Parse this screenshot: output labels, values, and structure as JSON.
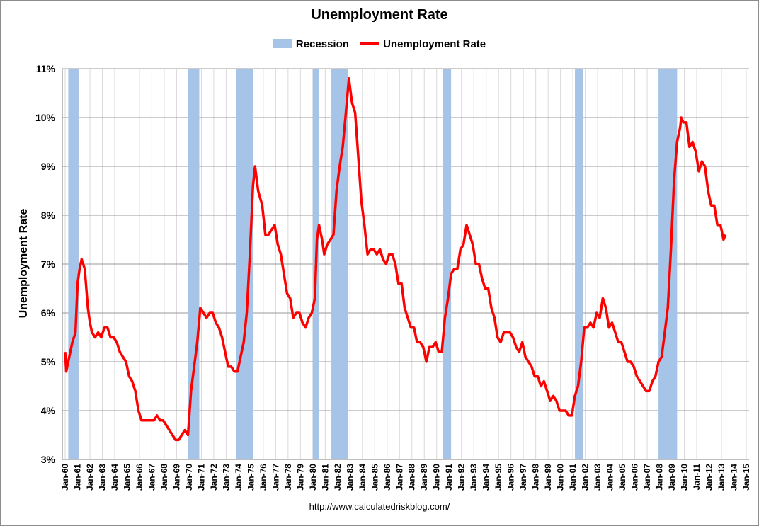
{
  "chart_data": {
    "type": "line",
    "title": "Unemployment Rate",
    "ylabel": "Unemployment Rate",
    "xlabel": "",
    "ylim": [
      3,
      11
    ],
    "xlim": [
      "Jan-60",
      "Jan-15"
    ],
    "legend": {
      "placement": "top-center",
      "entries": [
        "Recession",
        "Unemployment Rate"
      ]
    },
    "grid": true,
    "yticks": [
      "3%",
      "4%",
      "5%",
      "6%",
      "7%",
      "8%",
      "9%",
      "10%",
      "11%"
    ],
    "xticks": [
      "Jan-60",
      "Jan-61",
      "Jan-62",
      "Jan-63",
      "Jan-64",
      "Jan-65",
      "Jan-66",
      "Jan-67",
      "Jan-68",
      "Jan-69",
      "Jan-70",
      "Jan-71",
      "Jan-72",
      "Jan-73",
      "Jan-74",
      "Jan-75",
      "Jan-76",
      "Jan-77",
      "Jan-78",
      "Jan-79",
      "Jan-80",
      "Jan-81",
      "Jan-82",
      "Jan-83",
      "Jan-84",
      "Jan-85",
      "Jan-86",
      "Jan-87",
      "Jan-88",
      "Jan-89",
      "Jan-90",
      "Jan-91",
      "Jan-92",
      "Jan-93",
      "Jan-94",
      "Jan-95",
      "Jan-96",
      "Jan-97",
      "Jan-98",
      "Jan-99",
      "Jan-00",
      "Jan-01",
      "Jan-02",
      "Jan-03",
      "Jan-04",
      "Jan-05",
      "Jan-06",
      "Jan-07",
      "Jan-08",
      "Jan-09",
      "Jan-10",
      "Jan-11",
      "Jan-12",
      "Jan-13",
      "Jan-14",
      "Jan-15"
    ],
    "recessions": [
      {
        "start": "1960-04",
        "end": "1961-02"
      },
      {
        "start": "1969-12",
        "end": "1970-11"
      },
      {
        "start": "1973-11",
        "end": "1975-03"
      },
      {
        "start": "1980-01",
        "end": "1980-07"
      },
      {
        "start": "1981-07",
        "end": "1982-11"
      },
      {
        "start": "1990-07",
        "end": "1991-03"
      },
      {
        "start": "2001-03",
        "end": "2001-11"
      },
      {
        "start": "2007-12",
        "end": "2009-06"
      }
    ],
    "series": [
      {
        "name": "Unemployment Rate",
        "color": "#ff0000",
        "points": [
          [
            "1960-01",
            5.2
          ],
          [
            "1960-02",
            4.8
          ],
          [
            "1960-05",
            5.1
          ],
          [
            "1960-08",
            5.4
          ],
          [
            "1960-11",
            5.6
          ],
          [
            "1961-01",
            6.6
          ],
          [
            "1961-03",
            6.9
          ],
          [
            "1961-05",
            7.1
          ],
          [
            "1961-08",
            6.9
          ],
          [
            "1961-11",
            6.1
          ],
          [
            "1962-01",
            5.8
          ],
          [
            "1962-03",
            5.6
          ],
          [
            "1962-06",
            5.5
          ],
          [
            "1962-09",
            5.6
          ],
          [
            "1962-12",
            5.5
          ],
          [
            "1963-03",
            5.7
          ],
          [
            "1963-06",
            5.7
          ],
          [
            "1963-09",
            5.5
          ],
          [
            "1963-12",
            5.5
          ],
          [
            "1964-03",
            5.4
          ],
          [
            "1964-06",
            5.2
          ],
          [
            "1964-09",
            5.1
          ],
          [
            "1964-12",
            5.0
          ],
          [
            "1965-03",
            4.7
          ],
          [
            "1965-06",
            4.6
          ],
          [
            "1965-09",
            4.4
          ],
          [
            "1965-12",
            4.0
          ],
          [
            "1966-03",
            3.8
          ],
          [
            "1966-06",
            3.8
          ],
          [
            "1966-09",
            3.8
          ],
          [
            "1966-12",
            3.8
          ],
          [
            "1967-03",
            3.8
          ],
          [
            "1967-06",
            3.9
          ],
          [
            "1967-09",
            3.8
          ],
          [
            "1967-12",
            3.8
          ],
          [
            "1968-03",
            3.7
          ],
          [
            "1968-06",
            3.6
          ],
          [
            "1968-09",
            3.5
          ],
          [
            "1968-12",
            3.4
          ],
          [
            "1969-03",
            3.4
          ],
          [
            "1969-06",
            3.5
          ],
          [
            "1969-09",
            3.6
          ],
          [
            "1969-12",
            3.5
          ],
          [
            "1970-03",
            4.4
          ],
          [
            "1970-06",
            4.9
          ],
          [
            "1970-09",
            5.4
          ],
          [
            "1970-12",
            6.1
          ],
          [
            "1971-03",
            6.0
          ],
          [
            "1971-06",
            5.9
          ],
          [
            "1971-09",
            6.0
          ],
          [
            "1971-12",
            6.0
          ],
          [
            "1972-03",
            5.8
          ],
          [
            "1972-06",
            5.7
          ],
          [
            "1972-09",
            5.5
          ],
          [
            "1972-12",
            5.2
          ],
          [
            "1973-03",
            4.9
          ],
          [
            "1973-06",
            4.9
          ],
          [
            "1973-09",
            4.8
          ],
          [
            "1973-12",
            4.8
          ],
          [
            "1974-03",
            5.1
          ],
          [
            "1974-06",
            5.4
          ],
          [
            "1974-09",
            6.0
          ],
          [
            "1974-12",
            7.2
          ],
          [
            "1975-03",
            8.6
          ],
          [
            "1975-05",
            9.0
          ],
          [
            "1975-08",
            8.5
          ],
          [
            "1975-12",
            8.2
          ],
          [
            "1976-03",
            7.6
          ],
          [
            "1976-06",
            7.6
          ],
          [
            "1976-09",
            7.7
          ],
          [
            "1976-12",
            7.8
          ],
          [
            "1977-03",
            7.4
          ],
          [
            "1977-06",
            7.2
          ],
          [
            "1977-09",
            6.8
          ],
          [
            "1977-12",
            6.4
          ],
          [
            "1978-03",
            6.3
          ],
          [
            "1978-06",
            5.9
          ],
          [
            "1978-09",
            6.0
          ],
          [
            "1978-12",
            6.0
          ],
          [
            "1979-03",
            5.8
          ],
          [
            "1979-06",
            5.7
          ],
          [
            "1979-09",
            5.9
          ],
          [
            "1979-12",
            6.0
          ],
          [
            "1980-03",
            6.3
          ],
          [
            "1980-05",
            7.5
          ],
          [
            "1980-07",
            7.8
          ],
          [
            "1980-10",
            7.5
          ],
          [
            "1980-12",
            7.2
          ],
          [
            "1981-03",
            7.4
          ],
          [
            "1981-06",
            7.5
          ],
          [
            "1981-09",
            7.6
          ],
          [
            "1981-12",
            8.5
          ],
          [
            "1982-03",
            9.0
          ],
          [
            "1982-06",
            9.4
          ],
          [
            "1982-09",
            10.1
          ],
          [
            "1982-12",
            10.8
          ],
          [
            "1983-03",
            10.3
          ],
          [
            "1983-06",
            10.1
          ],
          [
            "1983-09",
            9.2
          ],
          [
            "1983-12",
            8.3
          ],
          [
            "1984-03",
            7.8
          ],
          [
            "1984-06",
            7.2
          ],
          [
            "1984-09",
            7.3
          ],
          [
            "1984-12",
            7.3
          ],
          [
            "1985-03",
            7.2
          ],
          [
            "1985-06",
            7.3
          ],
          [
            "1985-09",
            7.1
          ],
          [
            "1985-12",
            7.0
          ],
          [
            "1986-03",
            7.2
          ],
          [
            "1986-06",
            7.2
          ],
          [
            "1986-09",
            7.0
          ],
          [
            "1986-12",
            6.6
          ],
          [
            "1987-03",
            6.6
          ],
          [
            "1987-06",
            6.1
          ],
          [
            "1987-09",
            5.9
          ],
          [
            "1987-12",
            5.7
          ],
          [
            "1988-03",
            5.7
          ],
          [
            "1988-06",
            5.4
          ],
          [
            "1988-09",
            5.4
          ],
          [
            "1988-12",
            5.3
          ],
          [
            "1989-03",
            5.0
          ],
          [
            "1989-06",
            5.3
          ],
          [
            "1989-09",
            5.3
          ],
          [
            "1989-12",
            5.4
          ],
          [
            "1990-03",
            5.2
          ],
          [
            "1990-06",
            5.2
          ],
          [
            "1990-09",
            5.9
          ],
          [
            "1990-12",
            6.3
          ],
          [
            "1991-03",
            6.8
          ],
          [
            "1991-06",
            6.9
          ],
          [
            "1991-09",
            6.9
          ],
          [
            "1991-12",
            7.3
          ],
          [
            "1992-03",
            7.4
          ],
          [
            "1992-06",
            7.8
          ],
          [
            "1992-09",
            7.6
          ],
          [
            "1992-12",
            7.4
          ],
          [
            "1993-03",
            7.0
          ],
          [
            "1993-06",
            7.0
          ],
          [
            "1993-09",
            6.7
          ],
          [
            "1993-12",
            6.5
          ],
          [
            "1994-03",
            6.5
          ],
          [
            "1994-06",
            6.1
          ],
          [
            "1994-09",
            5.9
          ],
          [
            "1994-12",
            5.5
          ],
          [
            "1995-03",
            5.4
          ],
          [
            "1995-06",
            5.6
          ],
          [
            "1995-09",
            5.6
          ],
          [
            "1995-12",
            5.6
          ],
          [
            "1996-03",
            5.5
          ],
          [
            "1996-06",
            5.3
          ],
          [
            "1996-09",
            5.2
          ],
          [
            "1996-12",
            5.4
          ],
          [
            "1997-03",
            5.1
          ],
          [
            "1997-06",
            5.0
          ],
          [
            "1997-09",
            4.9
          ],
          [
            "1997-12",
            4.7
          ],
          [
            "1998-03",
            4.7
          ],
          [
            "1998-06",
            4.5
          ],
          [
            "1998-09",
            4.6
          ],
          [
            "1998-12",
            4.4
          ],
          [
            "1999-03",
            4.2
          ],
          [
            "1999-06",
            4.3
          ],
          [
            "1999-09",
            4.2
          ],
          [
            "1999-12",
            4.0
          ],
          [
            "2000-03",
            4.0
          ],
          [
            "2000-06",
            4.0
          ],
          [
            "2000-09",
            3.9
          ],
          [
            "2000-12",
            3.9
          ],
          [
            "2001-03",
            4.3
          ],
          [
            "2001-06",
            4.5
          ],
          [
            "2001-09",
            5.0
          ],
          [
            "2001-12",
            5.7
          ],
          [
            "2002-03",
            5.7
          ],
          [
            "2002-06",
            5.8
          ],
          [
            "2002-09",
            5.7
          ],
          [
            "2002-12",
            6.0
          ],
          [
            "2003-03",
            5.9
          ],
          [
            "2003-06",
            6.3
          ],
          [
            "2003-09",
            6.1
          ],
          [
            "2003-12",
            5.7
          ],
          [
            "2004-03",
            5.8
          ],
          [
            "2004-06",
            5.6
          ],
          [
            "2004-09",
            5.4
          ],
          [
            "2004-12",
            5.4
          ],
          [
            "2005-03",
            5.2
          ],
          [
            "2005-06",
            5.0
          ],
          [
            "2005-09",
            5.0
          ],
          [
            "2005-12",
            4.9
          ],
          [
            "2006-03",
            4.7
          ],
          [
            "2006-06",
            4.6
          ],
          [
            "2006-09",
            4.5
          ],
          [
            "2006-12",
            4.4
          ],
          [
            "2007-03",
            4.4
          ],
          [
            "2007-06",
            4.6
          ],
          [
            "2007-09",
            4.7
          ],
          [
            "2007-12",
            5.0
          ],
          [
            "2008-03",
            5.1
          ],
          [
            "2008-06",
            5.6
          ],
          [
            "2008-09",
            6.1
          ],
          [
            "2008-12",
            7.3
          ],
          [
            "2009-03",
            8.7
          ],
          [
            "2009-06",
            9.5
          ],
          [
            "2009-09",
            9.8
          ],
          [
            "2009-10",
            10.0
          ],
          [
            "2009-12",
            9.9
          ],
          [
            "2010-03",
            9.9
          ],
          [
            "2010-06",
            9.4
          ],
          [
            "2010-09",
            9.5
          ],
          [
            "2010-12",
            9.3
          ],
          [
            "2011-03",
            8.9
          ],
          [
            "2011-06",
            9.1
          ],
          [
            "2011-09",
            9.0
          ],
          [
            "2011-12",
            8.5
          ],
          [
            "2012-03",
            8.2
          ],
          [
            "2012-06",
            8.2
          ],
          [
            "2012-09",
            7.8
          ],
          [
            "2012-12",
            7.8
          ],
          [
            "2013-03",
            7.5
          ],
          [
            "2013-05",
            7.6
          ]
        ]
      }
    ]
  },
  "source": "http://www.calculatedriskblog.com/"
}
